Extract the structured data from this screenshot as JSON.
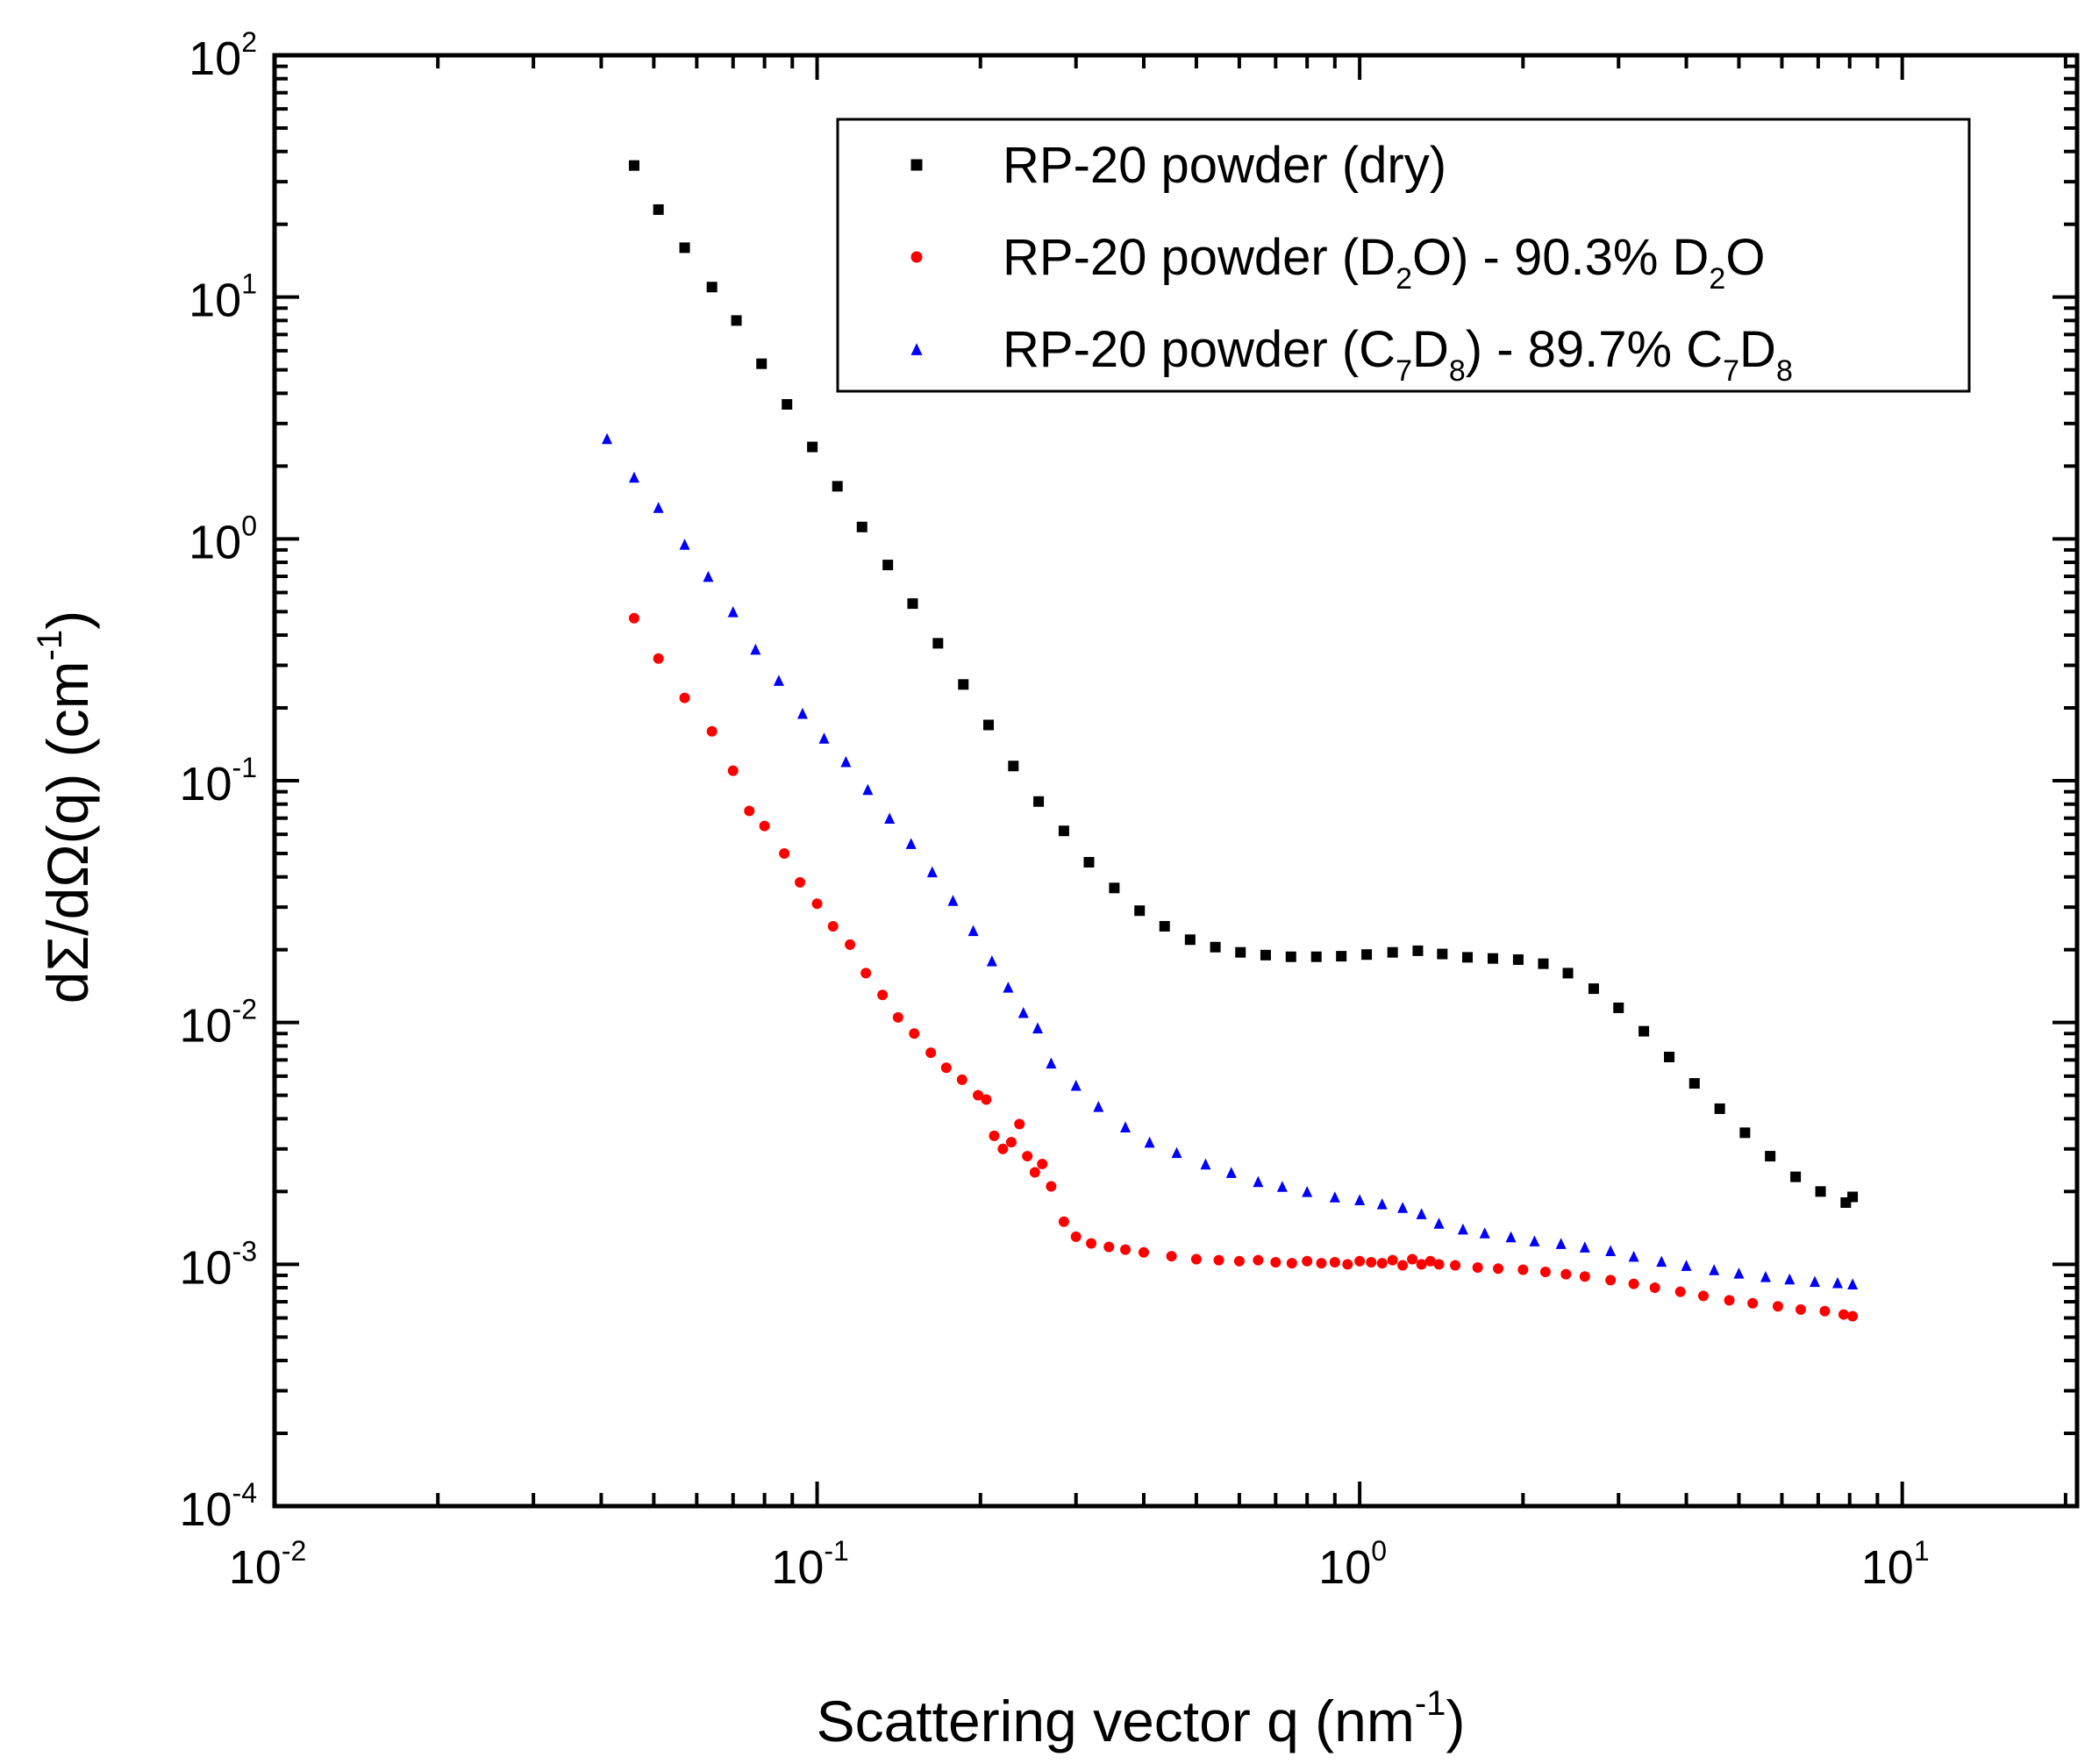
{
  "chart_data": {
    "type": "scatter",
    "x_scale": "log",
    "y_scale": "log",
    "xlim": [
      0.01,
      21
    ],
    "ylim": [
      0.0001,
      100
    ],
    "xlabel": "Scattering vector q (nm⁻¹)",
    "xlabel_parts": {
      "base": "Scattering vector q (nm",
      "exp": "-1",
      "tail": ")"
    },
    "ylabel": "dΣ/dΩ(q) (cm⁻¹)",
    "ylabel_parts": {
      "base": "dΣ/dΩ(q) (cm",
      "exp": "-1",
      "tail": ")"
    },
    "x_ticks": [
      {
        "value": 0.01,
        "base": "10",
        "exp": "-2"
      },
      {
        "value": 0.1,
        "base": "10",
        "exp": "-1"
      },
      {
        "value": 1,
        "base": "10",
        "exp": "0"
      },
      {
        "value": 10,
        "base": "10",
        "exp": "1"
      }
    ],
    "y_ticks": [
      {
        "value": 0.0001,
        "base": "10",
        "exp": "-4"
      },
      {
        "value": 0.001,
        "base": "10",
        "exp": "-3"
      },
      {
        "value": 0.01,
        "base": "10",
        "exp": "-2"
      },
      {
        "value": 0.1,
        "base": "10",
        "exp": "-1"
      },
      {
        "value": 1,
        "base": "10",
        "exp": "0"
      },
      {
        "value": 10,
        "base": "10",
        "exp": "1"
      },
      {
        "value": 100,
        "base": "10",
        "exp": "2"
      }
    ],
    "legend_position": "top-right",
    "series": [
      {
        "name": "RP-20 powder (dry)",
        "label_parts": [
          {
            "t": "RP-20 powder (dry)"
          }
        ],
        "color": "#000000",
        "marker": "square",
        "x": [
          0.046,
          0.051,
          0.057,
          0.064,
          0.071,
          0.079,
          0.088,
          0.098,
          0.109,
          0.121,
          0.135,
          0.15,
          0.167,
          0.186,
          0.207,
          0.23,
          0.256,
          0.285,
          0.317,
          0.353,
          0.393,
          0.437,
          0.487,
          0.542,
          0.603,
          0.671,
          0.747,
          0.832,
          0.925,
          1.03,
          1.15,
          1.28,
          1.42,
          1.58,
          1.76,
          1.96,
          2.18,
          2.42,
          2.7,
          3.0,
          3.34,
          3.72,
          4.14,
          4.61,
          5.13,
          5.71,
          6.36,
          7.07,
          7.87,
          8.1
        ],
        "y": [
          35,
          23,
          16,
          11,
          8,
          5.3,
          3.6,
          2.4,
          1.65,
          1.12,
          0.78,
          0.54,
          0.37,
          0.25,
          0.17,
          0.115,
          0.082,
          0.062,
          0.046,
          0.036,
          0.029,
          0.025,
          0.022,
          0.0205,
          0.0195,
          0.019,
          0.0187,
          0.0187,
          0.0188,
          0.0191,
          0.0195,
          0.0198,
          0.0192,
          0.0186,
          0.0184,
          0.0182,
          0.0175,
          0.016,
          0.0138,
          0.0115,
          0.0092,
          0.0072,
          0.0056,
          0.0044,
          0.0035,
          0.0028,
          0.0023,
          0.002,
          0.0018,
          0.0019
        ]
      },
      {
        "name": "RP-20 powder (D2O) - 90.3% D2O",
        "label_parts": [
          {
            "t": "RP-20 powder (D"
          },
          {
            "t": "2",
            "sub": true
          },
          {
            "t": "O) - 90.3% D"
          },
          {
            "t": "2",
            "sub": true
          },
          {
            "t": "O"
          }
        ],
        "color": "#ff0000",
        "marker": "circle",
        "x": [
          0.046,
          0.051,
          0.057,
          0.064,
          0.07,
          0.075,
          0.08,
          0.087,
          0.093,
          0.1,
          0.107,
          0.115,
          0.123,
          0.132,
          0.141,
          0.151,
          0.162,
          0.173,
          0.185,
          0.198,
          0.205,
          0.212,
          0.22,
          0.228,
          0.236,
          0.244,
          0.252,
          0.26,
          0.27,
          0.285,
          0.3,
          0.32,
          0.345,
          0.37,
          0.4,
          0.45,
          0.5,
          0.55,
          0.6,
          0.65,
          0.7,
          0.75,
          0.8,
          0.85,
          0.9,
          0.95,
          1.0,
          1.05,
          1.1,
          1.15,
          1.2,
          1.25,
          1.3,
          1.35,
          1.4,
          1.5,
          1.65,
          1.8,
          2.0,
          2.2,
          2.4,
          2.6,
          2.9,
          3.2,
          3.5,
          3.9,
          4.3,
          4.8,
          5.3,
          5.9,
          6.5,
          7.2,
          7.8,
          8.1
        ],
        "y": [
          0.47,
          0.32,
          0.22,
          0.16,
          0.11,
          0.075,
          0.065,
          0.05,
          0.038,
          0.031,
          0.025,
          0.021,
          0.016,
          0.013,
          0.0105,
          0.009,
          0.0075,
          0.0065,
          0.0058,
          0.005,
          0.0048,
          0.0034,
          0.003,
          0.0032,
          0.0038,
          0.0028,
          0.0024,
          0.0026,
          0.0021,
          0.0015,
          0.0013,
          0.00122,
          0.00118,
          0.00115,
          0.00112,
          0.00108,
          0.00105,
          0.00104,
          0.00103,
          0.00104,
          0.00102,
          0.00101,
          0.00103,
          0.00101,
          0.00102,
          0.001,
          0.00103,
          0.00102,
          0.00101,
          0.00104,
          0.00099,
          0.00105,
          0.001,
          0.00103,
          0.001,
          0.00099,
          0.00097,
          0.00096,
          0.00095,
          0.00093,
          0.00091,
          0.00089,
          0.00086,
          0.00083,
          0.0008,
          0.00077,
          0.00074,
          0.00071,
          0.00069,
          0.00067,
          0.00065,
          0.00064,
          0.00062,
          0.00061
        ]
      },
      {
        "name": "RP-20 powder (C7D8) - 89.7% C7D8",
        "label_parts": [
          {
            "t": "RP-20 powder (C"
          },
          {
            "t": "7",
            "sub": true
          },
          {
            "t": "D"
          },
          {
            "t": "8",
            "sub": true
          },
          {
            "t": ") - 89.7% C"
          },
          {
            "t": "7",
            "sub": true
          },
          {
            "t": "D"
          },
          {
            "t": "8",
            "sub": true
          }
        ],
        "color": "#0000ff",
        "marker": "triangle",
        "x": [
          0.041,
          0.046,
          0.051,
          0.057,
          0.063,
          0.07,
          0.077,
          0.085,
          0.094,
          0.103,
          0.113,
          0.124,
          0.136,
          0.149,
          0.163,
          0.178,
          0.194,
          0.21,
          0.225,
          0.24,
          0.255,
          0.27,
          0.3,
          0.33,
          0.37,
          0.41,
          0.46,
          0.52,
          0.58,
          0.65,
          0.72,
          0.8,
          0.9,
          1.0,
          1.1,
          1.2,
          1.3,
          1.4,
          1.55,
          1.7,
          1.9,
          2.1,
          2.35,
          2.6,
          2.9,
          3.2,
          3.6,
          4.0,
          4.5,
          5.0,
          5.6,
          6.2,
          6.9,
          7.6,
          8.1
        ],
        "y": [
          2.6,
          1.8,
          1.35,
          0.95,
          0.7,
          0.5,
          0.35,
          0.26,
          0.19,
          0.15,
          0.12,
          0.092,
          0.07,
          0.055,
          0.042,
          0.032,
          0.024,
          0.018,
          0.014,
          0.011,
          0.0095,
          0.0068,
          0.0055,
          0.0045,
          0.0037,
          0.0032,
          0.0029,
          0.0026,
          0.0024,
          0.0022,
          0.0021,
          0.002,
          0.0019,
          0.00185,
          0.00178,
          0.00172,
          0.00162,
          0.00148,
          0.0014,
          0.00135,
          0.0013,
          0.00125,
          0.00122,
          0.00118,
          0.00114,
          0.00108,
          0.00103,
          0.00099,
          0.00095,
          0.00092,
          0.00089,
          0.00087,
          0.00085,
          0.00084,
          0.00083
        ]
      }
    ]
  }
}
